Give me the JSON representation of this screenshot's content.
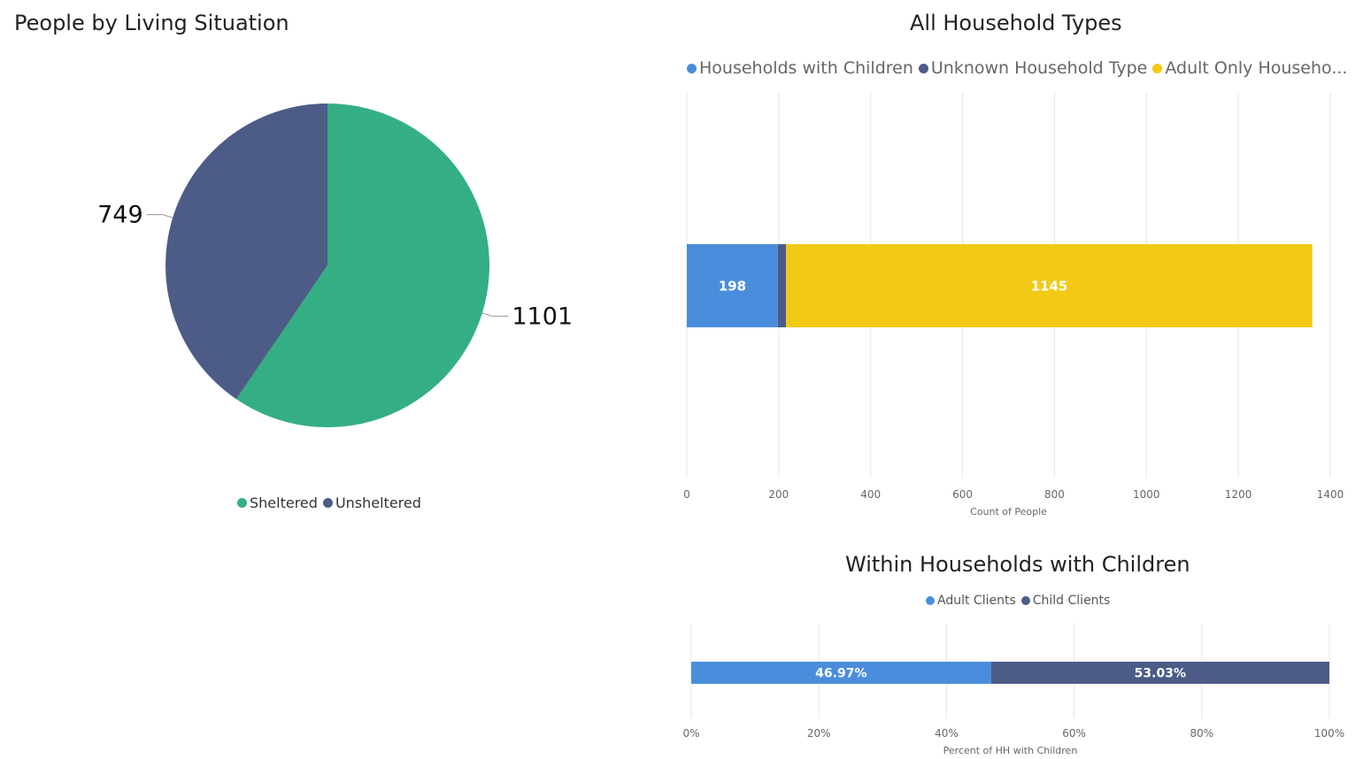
{
  "colors": {
    "sheltered": "#34AF83",
    "unsheltered": "#4C5C87",
    "households_with_children": "#4A8DDC",
    "unknown_household_type": "#4C5C87",
    "adult_only": "#F2CA15",
    "adult_clients": "#4A8DDC",
    "child_clients": "#4C5C87"
  },
  "chart_data": [
    {
      "type": "pie",
      "title": "People by Living Situation",
      "legend": [
        "Sheltered",
        "Unsheltered"
      ],
      "legend_position": "bottom",
      "slices": [
        {
          "label": "Sheltered",
          "value": 1101,
          "value_label": "1101"
        },
        {
          "label": "Unsheltered",
          "value": 749,
          "value_label": "749"
        }
      ]
    },
    {
      "type": "bar",
      "orientation": "horizontal",
      "stacked": true,
      "title": "All Household Types",
      "legend": [
        "Households with Children",
        "Unknown Household Type",
        "Adult Only Househo..."
      ],
      "legend_position": "top",
      "xlabel": "Count of People",
      "ylabel": "",
      "xlim": [
        0,
        1400
      ],
      "xticks": [
        "0",
        "200",
        "400",
        "600",
        "800",
        "1000",
        "1200",
        "1400"
      ],
      "grid": true,
      "series": [
        {
          "name": "Households with Children",
          "values": [
            198
          ],
          "data_label": "198"
        },
        {
          "name": "Unknown Household Type",
          "values": [
            18
          ],
          "data_label": ""
        },
        {
          "name": "Adult Only Househo...",
          "values": [
            1145
          ],
          "data_label": "1145"
        }
      ]
    },
    {
      "type": "bar",
      "orientation": "horizontal",
      "stacked": true,
      "title": "Within Households with Children",
      "legend": [
        "Adult Clients",
        "Child Clients"
      ],
      "legend_position": "top",
      "xlabel": "Percent of HH with Children",
      "ylabel": "",
      "xlim": [
        0,
        100
      ],
      "xticks": [
        "0%",
        "20%",
        "40%",
        "60%",
        "80%",
        "100%"
      ],
      "grid": true,
      "series": [
        {
          "name": "Adult Clients",
          "values": [
            46.97
          ],
          "data_label": "46.97%"
        },
        {
          "name": "Child Clients",
          "values": [
            53.03
          ],
          "data_label": "53.03%"
        }
      ]
    }
  ]
}
